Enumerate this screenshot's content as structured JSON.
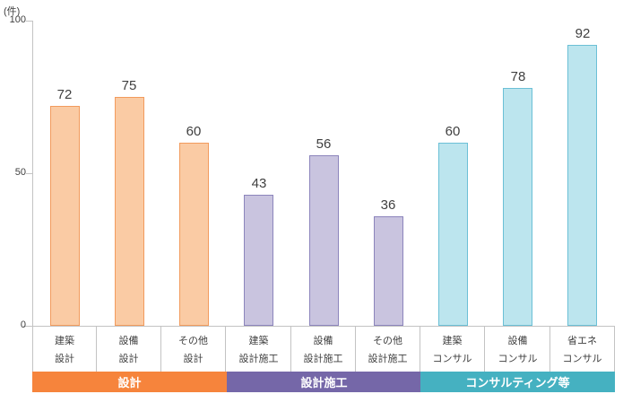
{
  "chart_data": {
    "type": "bar",
    "title": "",
    "unit_label": "(件)",
    "xlabel": "",
    "ylabel": "(件)",
    "ylim": [
      0,
      100
    ],
    "yticks": [
      0,
      50,
      100
    ],
    "grid": false,
    "legend": false,
    "axis_color": "#C3C3C3",
    "text_color": "#3F3F3F",
    "groups": [
      {
        "label": "設計",
        "band_color": "#F6843C",
        "bar_fill": "#FACBA4",
        "bar_border": "#F29B5D",
        "categories": [
          [
            "建築",
            "設計"
          ],
          [
            "設備",
            "設計"
          ],
          [
            "その他",
            "設計"
          ]
        ],
        "values": [
          72,
          75,
          60
        ]
      },
      {
        "label": "設計施工",
        "band_color": "#7567A8",
        "bar_fill": "#C9C4DF",
        "bar_border": "#8C85BC",
        "categories": [
          [
            "建築",
            "設計施工"
          ],
          [
            "設備",
            "設計施工"
          ],
          [
            "その他",
            "設計施工"
          ]
        ],
        "values": [
          43,
          56,
          36
        ]
      },
      {
        "label": "コンサルティング等",
        "band_color": "#45B1C1",
        "bar_fill": "#BCE5EE",
        "bar_border": "#6BC0D6",
        "categories": [
          [
            "建築",
            "コンサル"
          ],
          [
            "設備",
            "コンサル"
          ],
          [
            "省エネ",
            "コンサル"
          ]
        ],
        "values": [
          60,
          78,
          92
        ]
      }
    ]
  }
}
